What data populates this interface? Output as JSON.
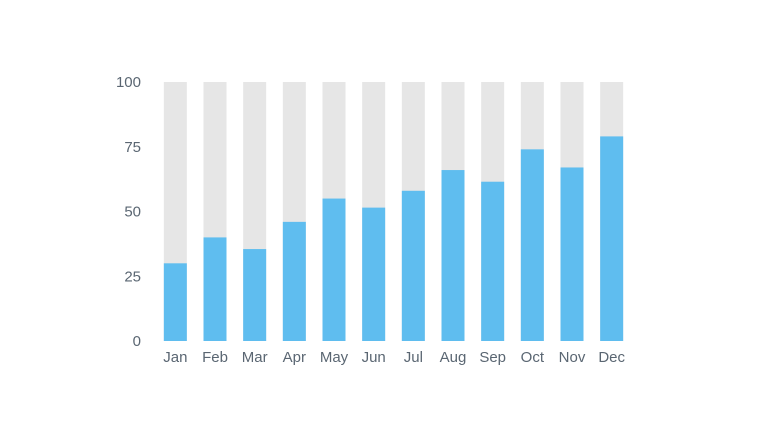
{
  "chart_data": {
    "type": "bar",
    "title": "",
    "xlabel": "",
    "ylabel": "",
    "categories": [
      "Jan",
      "Feb",
      "Mar",
      "Apr",
      "May",
      "Jun",
      "Jul",
      "Aug",
      "Sep",
      "Oct",
      "Nov",
      "Dec"
    ],
    "values": [
      30,
      40,
      35.5,
      46,
      55,
      51.5,
      58,
      66,
      61.5,
      74,
      67,
      79
    ],
    "background_max": 100,
    "ylim": [
      0,
      100
    ],
    "yticks": [
      0,
      25,
      50,
      75,
      100
    ],
    "grid": false,
    "colors": {
      "bar": "#5fbdef",
      "track": "#e6e6e6",
      "text": "#5a6672"
    }
  }
}
